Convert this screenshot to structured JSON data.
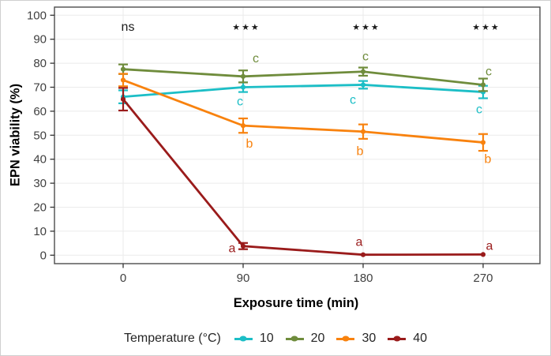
{
  "chart_data": {
    "type": "line",
    "title": "",
    "xlabel": "Exposure time (min)",
    "ylabel": "EPN viability (%)",
    "x": [
      0,
      90,
      180,
      270
    ],
    "xticks": [
      0,
      90,
      180,
      270
    ],
    "yticks": [
      0,
      10,
      20,
      30,
      40,
      50,
      60,
      70,
      80,
      90,
      100
    ],
    "ylim": [
      -3.5,
      103.5
    ],
    "grid": true,
    "legend": {
      "title": "Temperature (°C)",
      "position": "bottom"
    },
    "series": [
      {
        "name": "10",
        "color": "#1cbec6",
        "values": [
          66,
          70,
          71,
          68
        ],
        "errors": [
          2.7,
          2,
          1.6,
          2.6
        ],
        "letters": [
          null,
          {
            "label": "c",
            "dx": -4,
            "dy": 18
          },
          {
            "label": "c",
            "dx": -13,
            "dy": 19
          },
          {
            "label": "c",
            "dx": -5,
            "dy": 22
          }
        ]
      },
      {
        "name": "20",
        "color": "#6f8c3c",
        "values": [
          77.5,
          74.5,
          76.5,
          71
        ],
        "errors": [
          2,
          2.5,
          1.7,
          2.6
        ],
        "letters": [
          null,
          {
            "label": "c",
            "dx": 16,
            "dy": -23
          },
          {
            "label": "c",
            "dx": 3,
            "dy": -19
          },
          {
            "label": "c",
            "dx": 7,
            "dy": -17
          }
        ]
      },
      {
        "name": "30",
        "color": "#f8820e",
        "values": [
          73,
          54,
          51.5,
          47
        ],
        "errors": [
          2.6,
          3,
          3,
          3.5
        ],
        "letters": [
          null,
          {
            "label": "b",
            "dx": 8,
            "dy": 23
          },
          {
            "label": "b",
            "dx": -4,
            "dy": 25
          },
          {
            "label": "b",
            "dx": 6,
            "dy": 21
          }
        ]
      },
      {
        "name": "40",
        "color": "#9a1b1b",
        "values": [
          65,
          3.8,
          0.2,
          0.3
        ],
        "errors": [
          4.7,
          1.3,
          0,
          0
        ],
        "letters": [
          null,
          {
            "label": "a",
            "dx": -14,
            "dy": 3
          },
          {
            "label": "a",
            "dx": -5,
            "dy": -16
          },
          {
            "label": "a",
            "dx": 8,
            "dy": -11
          }
        ]
      }
    ],
    "significance": [
      {
        "x": 0,
        "label": "ns"
      },
      {
        "x": 90,
        "label": "***"
      },
      {
        "x": 180,
        "label": "***"
      },
      {
        "x": 270,
        "label": "***"
      }
    ]
  }
}
